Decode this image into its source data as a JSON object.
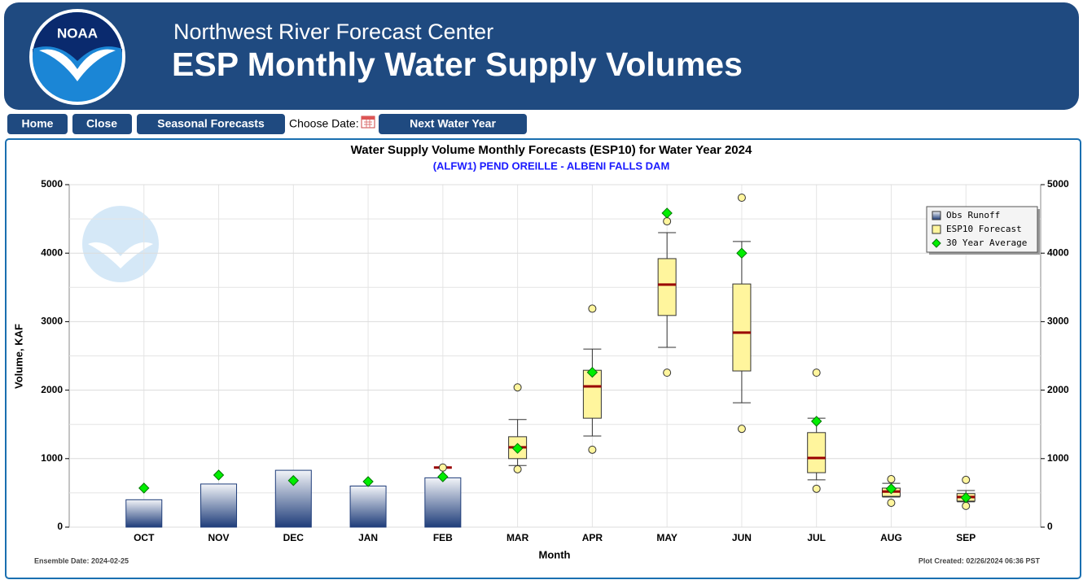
{
  "header": {
    "subtitle": "Northwest River Forecast Center",
    "title": "ESP Monthly Water Supply Volumes",
    "logo": "NOAA"
  },
  "nav": {
    "buttons": [
      "Home",
      "Close",
      "Seasonal Forecasts",
      "Next Water Year"
    ],
    "choose_date": "Choose Date:"
  },
  "chart_data": {
    "type": "box",
    "title": "Water Supply Volume Monthly Forecasts (ESP10) for Water Year 2024",
    "subtitle": "(ALFW1) PEND OREILLE - ALBENI FALLS DAM",
    "x_label": "Month",
    "y_label": "Volume, KAF",
    "categories": [
      "OCT",
      "NOV",
      "DEC",
      "JAN",
      "FEB",
      "MAR",
      "APR",
      "MAY",
      "JUN",
      "JUL",
      "AUG",
      "SEP"
    ],
    "ylim": [
      0,
      5000
    ],
    "yticks": [
      0,
      1000,
      2000,
      3000,
      4000,
      5000
    ],
    "minor_yticks": [
      500,
      1500,
      2500,
      3500,
      4500
    ],
    "y2lim": [
      0,
      5000
    ],
    "y2ticks": [
      0,
      1000,
      2000,
      3000,
      4000,
      5000
    ],
    "grid": true,
    "legend": "upper right",
    "obs": {
      "name": "Obs Runoff",
      "color": "#1f3d7a",
      "values": [
        400,
        630,
        830,
        600,
        720,
        null,
        null,
        null,
        null,
        null,
        null,
        null
      ]
    },
    "forecast": {
      "name": "ESP10 Forecast",
      "color": "#fff59d",
      "median_color": "#990000",
      "median": [
        null,
        null,
        null,
        null,
        870,
        1165,
        2055,
        3540,
        2840,
        1010,
        520,
        440
      ],
      "q1": [
        null,
        null,
        null,
        null,
        null,
        1000,
        1590,
        3090,
        2280,
        795,
        450,
        380
      ],
      "q3": [
        null,
        null,
        null,
        null,
        null,
        1320,
        2290,
        3920,
        3550,
        1380,
        570,
        490
      ],
      "whisker_low": [
        null,
        null,
        null,
        null,
        null,
        900,
        1330,
        2625,
        1815,
        690,
        440,
        370
      ],
      "whisker_high": [
        null,
        null,
        null,
        null,
        null,
        1570,
        2600,
        4300,
        4170,
        1590,
        640,
        535
      ],
      "outlier_low": [
        null,
        null,
        null,
        null,
        null,
        845,
        1130,
        2255,
        1435,
        560,
        355,
        310
      ],
      "outlier_high": [
        null,
        null,
        null,
        null,
        870,
        2040,
        3190,
        4465,
        4810,
        2255,
        700,
        690
      ]
    },
    "average": {
      "name": "30 Year Average",
      "color": "#00ee00",
      "values": [
        570,
        760,
        680,
        665,
        735,
        1150,
        2260,
        4585,
        4000,
        1545,
        560,
        430
      ]
    },
    "footer_left": "Ensemble Date: 2024-02-25",
    "footer_right": "Plot Created: 02/26/2024 06:36 PST"
  }
}
